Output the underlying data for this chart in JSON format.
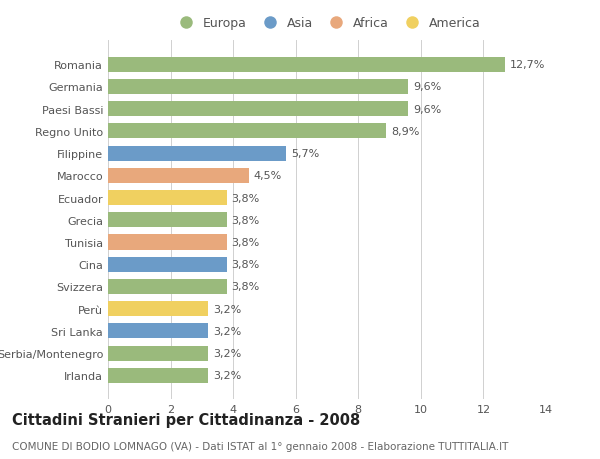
{
  "countries": [
    "Romania",
    "Germania",
    "Paesi Bassi",
    "Regno Unito",
    "Filippine",
    "Marocco",
    "Ecuador",
    "Grecia",
    "Tunisia",
    "Cina",
    "Svizzera",
    "Perù",
    "Sri Lanka",
    "Serbia/Montenegro",
    "Irlanda"
  ],
  "values": [
    12.7,
    9.6,
    9.6,
    8.9,
    5.7,
    4.5,
    3.8,
    3.8,
    3.8,
    3.8,
    3.8,
    3.2,
    3.2,
    3.2,
    3.2
  ],
  "labels": [
    "12,7%",
    "9,6%",
    "9,6%",
    "8,9%",
    "5,7%",
    "4,5%",
    "3,8%",
    "3,8%",
    "3,8%",
    "3,8%",
    "3,8%",
    "3,2%",
    "3,2%",
    "3,2%",
    "3,2%"
  ],
  "continents": [
    "Europa",
    "Europa",
    "Europa",
    "Europa",
    "Asia",
    "Africa",
    "America",
    "Europa",
    "Africa",
    "Asia",
    "Europa",
    "America",
    "Asia",
    "Europa",
    "Europa"
  ],
  "colors": {
    "Europa": "#9aba7c",
    "Asia": "#6b9bc8",
    "Africa": "#e8a87c",
    "America": "#f0d060"
  },
  "legend_order": [
    "Europa",
    "Asia",
    "Africa",
    "America"
  ],
  "xlim": [
    0,
    14
  ],
  "xticks": [
    0,
    2,
    4,
    6,
    8,
    10,
    12,
    14
  ],
  "title": "Cittadini Stranieri per Cittadinanza - 2008",
  "subtitle": "COMUNE DI BODIO LOMNAGO (VA) - Dati ISTAT al 1° gennaio 2008 - Elaborazione TUTTITALIA.IT",
  "background_color": "#ffffff",
  "grid_color": "#d0d0d0",
  "bar_height": 0.68,
  "title_fontsize": 10.5,
  "subtitle_fontsize": 7.5,
  "label_fontsize": 8,
  "tick_fontsize": 8,
  "legend_fontsize": 9
}
